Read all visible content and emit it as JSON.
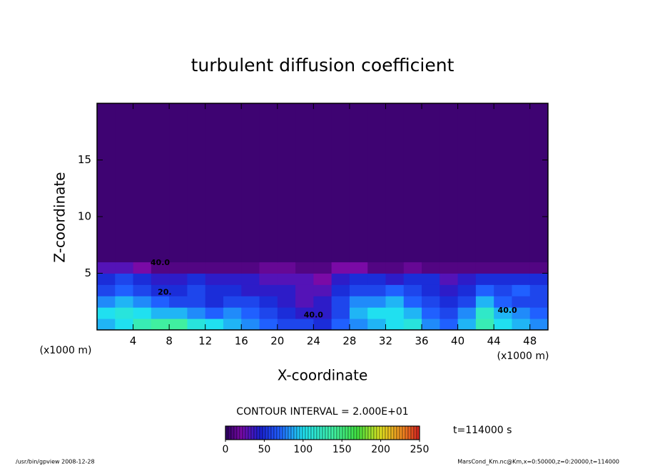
{
  "chart_data": {
    "type": "contour",
    "title": "turbulent diffusion coefficient",
    "x_label": "X-coordinate",
    "y_label": "Z-coordinate",
    "x_unit": "(x1000 m)",
    "xlim": [
      0,
      50
    ],
    "xticks": [
      4,
      8,
      12,
      16,
      20,
      24,
      28,
      32,
      36,
      40,
      44,
      48
    ],
    "ylim": [
      0,
      20
    ],
    "yticks": [
      5,
      10,
      15
    ],
    "xbins": [
      0,
      2,
      4,
      6,
      8,
      10,
      12,
      14,
      16,
      18,
      20,
      22,
      24,
      26,
      28,
      30,
      32,
      34,
      36,
      38,
      40,
      42,
      44,
      46,
      48,
      50
    ],
    "zbins": [
      0,
      1,
      2,
      3,
      4,
      5,
      6,
      20
    ],
    "values": [
      [
        90,
        100,
        130,
        140,
        140,
        110,
        100,
        90,
        80,
        70,
        60,
        60,
        50,
        70,
        80,
        90,
        100,
        110,
        80,
        70,
        90,
        130,
        100,
        90,
        80
      ],
      [
        100,
        110,
        100,
        90,
        90,
        80,
        70,
        80,
        70,
        60,
        50,
        40,
        40,
        60,
        90,
        100,
        100,
        90,
        70,
        60,
        80,
        120,
        90,
        80,
        70
      ],
      [
        80,
        90,
        80,
        70,
        60,
        60,
        50,
        60,
        60,
        50,
        40,
        30,
        40,
        60,
        80,
        80,
        90,
        70,
        60,
        50,
        60,
        90,
        70,
        60,
        60
      ],
      [
        60,
        70,
        60,
        50,
        50,
        60,
        50,
        50,
        40,
        40,
        40,
        30,
        30,
        50,
        60,
        60,
        70,
        60,
        50,
        40,
        50,
        70,
        60,
        70,
        60
      ],
      [
        50,
        60,
        50,
        40,
        40,
        50,
        40,
        40,
        40,
        30,
        30,
        30,
        20,
        40,
        50,
        50,
        40,
        50,
        50,
        30,
        40,
        50,
        50,
        50,
        50
      ],
      [
        30,
        30,
        20,
        10,
        10,
        10,
        10,
        10,
        10,
        15,
        15,
        10,
        10,
        20,
        20,
        10,
        10,
        15,
        10,
        10,
        10,
        10,
        10,
        10,
        10
      ],
      [
        5,
        5,
        5,
        5,
        5,
        5,
        5,
        5,
        5,
        5,
        5,
        5,
        5,
        5,
        5,
        5,
        5,
        5,
        5,
        5,
        5,
        5,
        5,
        5,
        5
      ]
    ],
    "contour_labels": [
      {
        "text": "40.0",
        "x": 7,
        "y": 5.9
      },
      {
        "text": "20.",
        "x": 7.5,
        "y": 3.3
      },
      {
        "text": "40.0",
        "x": 24,
        "y": 1.3
      },
      {
        "text": "40.0",
        "x": 45.5,
        "y": 1.7
      }
    ],
    "colormap": [
      [
        0,
        "#2a0060"
      ],
      [
        20,
        "#7a0aa6"
      ],
      [
        45,
        "#1a20d0"
      ],
      [
        70,
        "#2060ff"
      ],
      [
        100,
        "#20e0f0"
      ],
      [
        140,
        "#40f0a0"
      ],
      [
        170,
        "#40e040"
      ],
      [
        200,
        "#e0e020"
      ],
      [
        230,
        "#f08020"
      ],
      [
        250,
        "#d02020"
      ]
    ],
    "contour_interval": "CONTOUR INTERVAL = 2.000E+01",
    "colorbar_lim": [
      0,
      250
    ],
    "colorbar_ticks": [
      0,
      50,
      100,
      150,
      200,
      250
    ],
    "time_label": "t=114000 s",
    "footer_left": "/usr/bin/gpview  2008-12-28",
    "footer_right": "MarsCond_Km.nc@Km,x=0:50000,z=0:20000,t=114000"
  }
}
